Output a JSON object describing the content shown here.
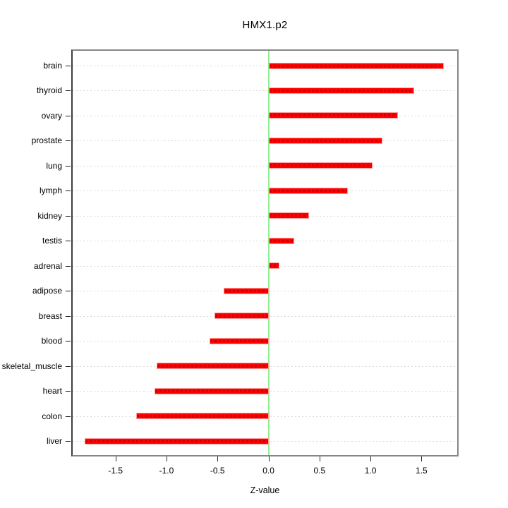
{
  "figure": {
    "background": "#ffffff"
  },
  "chart_data": {
    "type": "bar",
    "orientation": "horizontal",
    "title": "HMX1.p2",
    "xlabel": "Z-value",
    "ylabel": "",
    "categories": [
      "brain",
      "thyroid",
      "ovary",
      "prostate",
      "lung",
      "lymph",
      "kidney",
      "testis",
      "adrenal",
      "adipose",
      "breast",
      "blood",
      "skeletal_muscle",
      "heart",
      "colon",
      "liver"
    ],
    "values": [
      1.72,
      1.43,
      1.27,
      1.12,
      1.02,
      0.78,
      0.4,
      0.25,
      0.11,
      -0.44,
      -0.53,
      -0.58,
      -1.1,
      -1.12,
      -1.3,
      -1.8
    ],
    "xticks": [
      -1.5,
      -1.0,
      -0.5,
      0.0,
      0.5,
      1.0,
      1.5
    ],
    "xtick_labels": [
      "-1.5",
      "-1.0",
      "-0.5",
      "0.0",
      "0.5",
      "1.0",
      "1.5"
    ],
    "xlim": [
      -1.92,
      1.85
    ],
    "grid": "horizontal dotted line per category",
    "legend": "none",
    "reference_line_x": 0,
    "colors": {
      "bar": "#ff0000",
      "bar_edge": "#ff9999",
      "bar_dash": "#cc0000",
      "reference_line": "#90ee90",
      "gridline": "#d9d9d9",
      "box_border": "#878787",
      "axis_text": "#000000"
    }
  }
}
